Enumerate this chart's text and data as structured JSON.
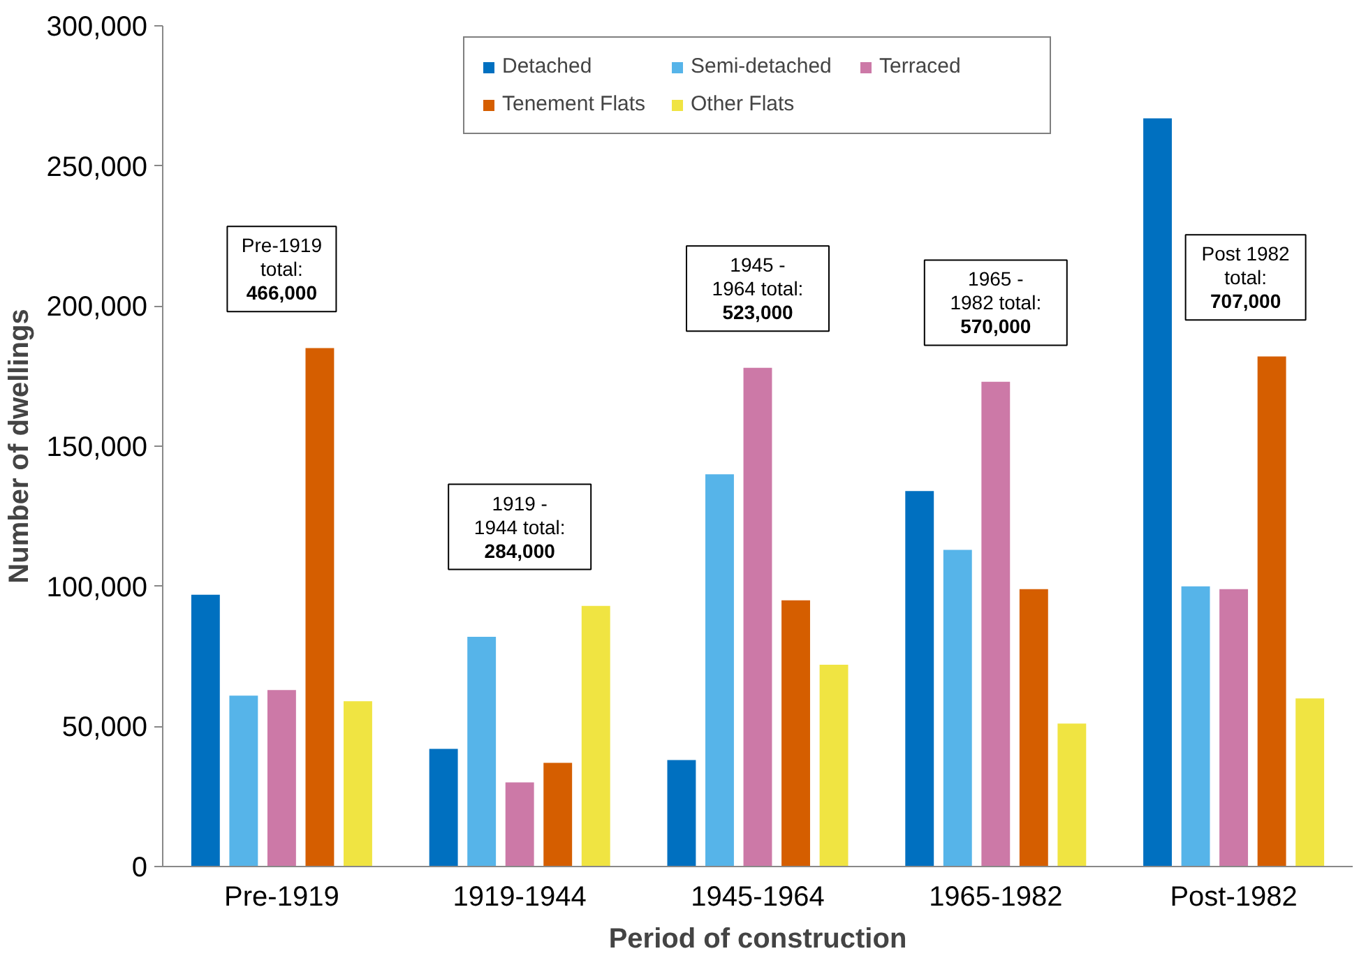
{
  "chart_data": {
    "type": "bar",
    "xlabel": "Period of construction",
    "ylabel": "Number of dwellings",
    "categories": [
      "Pre-1919",
      "1919-1944",
      "1945-1964",
      "1965-1982",
      "Post-1982"
    ],
    "series": [
      {
        "name": "Detached",
        "color": "#0070c0",
        "values": [
          97000,
          42000,
          38000,
          134000,
          267000
        ]
      },
      {
        "name": "Semi-detached",
        "color": "#56b4e9",
        "values": [
          61000,
          82000,
          140000,
          113000,
          100000
        ]
      },
      {
        "name": "Terraced",
        "color": "#cc79a7",
        "values": [
          63000,
          30000,
          178000,
          173000,
          99000
        ]
      },
      {
        "name": "Tenement Flats",
        "color": "#d55e00",
        "values": [
          185000,
          37000,
          95000,
          99000,
          182000
        ]
      },
      {
        "name": "Other Flats",
        "color": "#f0e442",
        "values": [
          59000,
          93000,
          72000,
          51000,
          60000
        ]
      }
    ],
    "ylim": [
      0,
      300000
    ],
    "yticks": [
      0,
      {
        "value": 50000,
        "label": "50,000"
      },
      {
        "value": 100000,
        "label": "100,000"
      },
      {
        "value": 150000,
        "label": "150,000"
      },
      {
        "value": 200000,
        "label": "200,000"
      },
      {
        "value": 250000,
        "label": "250,000"
      },
      {
        "value": 300000,
        "label": "300,000"
      }
    ],
    "grid": false,
    "legend": "top",
    "annotations": [
      "Pre-1919\ntotal:\n466,000",
      "1919 -\n1944 total:\n284,000",
      "1945 -\n1964 total:\n523,000",
      "1965 -\n1982 total:\n570,000",
      "Post 1982\ntotal:\n707,000"
    ]
  }
}
